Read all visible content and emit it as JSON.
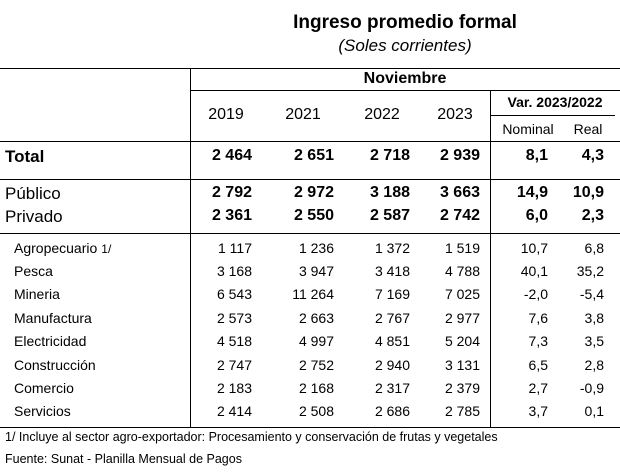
{
  "title": "Ingreso promedio formal",
  "subtitle": "(Soles corrientes)",
  "header": {
    "period": "Noviembre",
    "years": [
      "2019",
      "2021",
      "2022",
      "2023"
    ],
    "var_label": "Var. 2023/2022",
    "nominal": "Nominal",
    "real": "Real"
  },
  "rows": [
    {
      "label": "Total",
      "values": [
        "2 464",
        "2 651",
        "2 718",
        "2 939"
      ],
      "nominal": "8,1",
      "real": "4,3"
    },
    {
      "label": "Público",
      "values": [
        "2 792",
        "2 972",
        "3 188",
        "3 663"
      ],
      "nominal": "14,9",
      "real": "10,9"
    },
    {
      "label": "Privado",
      "values": [
        "2 361",
        "2 550",
        "2 587",
        "2 742"
      ],
      "nominal": "6,0",
      "real": "2,3"
    },
    {
      "label": "Agropecuario",
      "footnote_mark": "1/",
      "values": [
        "1 117",
        "1 236",
        "1 372",
        "1 519"
      ],
      "nominal": "10,7",
      "real": "6,8"
    },
    {
      "label": "Pesca",
      "values": [
        "3 168",
        "3 947",
        "3 418",
        "4 788"
      ],
      "nominal": "40,1",
      "real": "35,2"
    },
    {
      "label": "Mineria",
      "values": [
        "6 543",
        "11 264",
        "7 169",
        "7 025"
      ],
      "nominal": "-2,0",
      "real": "-5,4"
    },
    {
      "label": "Manufactura",
      "values": [
        "2 573",
        "2 663",
        "2 767",
        "2 977"
      ],
      "nominal": "7,6",
      "real": "3,8"
    },
    {
      "label": "Electricidad",
      "values": [
        "4 518",
        "4 997",
        "4 851",
        "5 204"
      ],
      "nominal": "7,3",
      "real": "3,5"
    },
    {
      "label": "Construcción",
      "values": [
        "2 747",
        "2 752",
        "2 940",
        "3 131"
      ],
      "nominal": "6,5",
      "real": "2,8"
    },
    {
      "label": "Comercio",
      "values": [
        "2 183",
        "2 168",
        "2 317",
        "2 379"
      ],
      "nominal": "2,7",
      "real": "-0,9"
    },
    {
      "label": "Servicios",
      "values": [
        "2 414",
        "2 508",
        "2 686",
        "2 785"
      ],
      "nominal": "3,7",
      "real": "0,1"
    }
  ],
  "footnotes": {
    "note1": "1/ Incluye al sector agro-exportador: Procesamiento y conservación de frutas y vegetales",
    "source": "Fuente: Sunat - Planilla Mensual de Pagos"
  }
}
